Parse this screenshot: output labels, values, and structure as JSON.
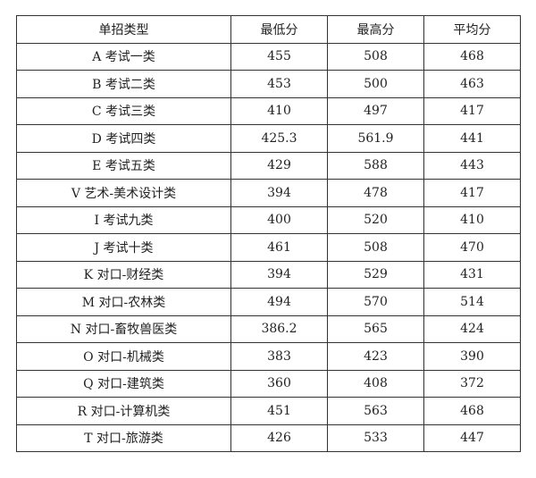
{
  "table": {
    "headers": [
      "单招类型",
      "最低分",
      "最高分",
      "平均分"
    ],
    "rows": [
      [
        "A 考试一类",
        "455",
        "508",
        "468"
      ],
      [
        "B 考试二类",
        "453",
        "500",
        "463"
      ],
      [
        "C 考试三类",
        "410",
        "497",
        "417"
      ],
      [
        "D 考试四类",
        "425.3",
        "561.9",
        "441"
      ],
      [
        "E 考试五类",
        "429",
        "588",
        "443"
      ],
      [
        "V 艺术-美术设计类",
        "394",
        "478",
        "417"
      ],
      [
        "I 考试九类",
        "400",
        "520",
        "410"
      ],
      [
        "J 考试十类",
        "461",
        "508",
        "470"
      ],
      [
        "K 对口-财经类",
        "394",
        "529",
        "431"
      ],
      [
        "M 对口-农林类",
        "494",
        "570",
        "514"
      ],
      [
        "N 对口-畜牧兽医类",
        "386.2",
        "565",
        "424"
      ],
      [
        "O 对口-机械类",
        "383",
        "423",
        "390"
      ],
      [
        "Q 对口-建筑类",
        "360",
        "408",
        "372"
      ],
      [
        "R 对口-计算机类",
        "451",
        "563",
        "468"
      ],
      [
        "T 对口-旅游类",
        "426",
        "533",
        "447"
      ]
    ]
  }
}
